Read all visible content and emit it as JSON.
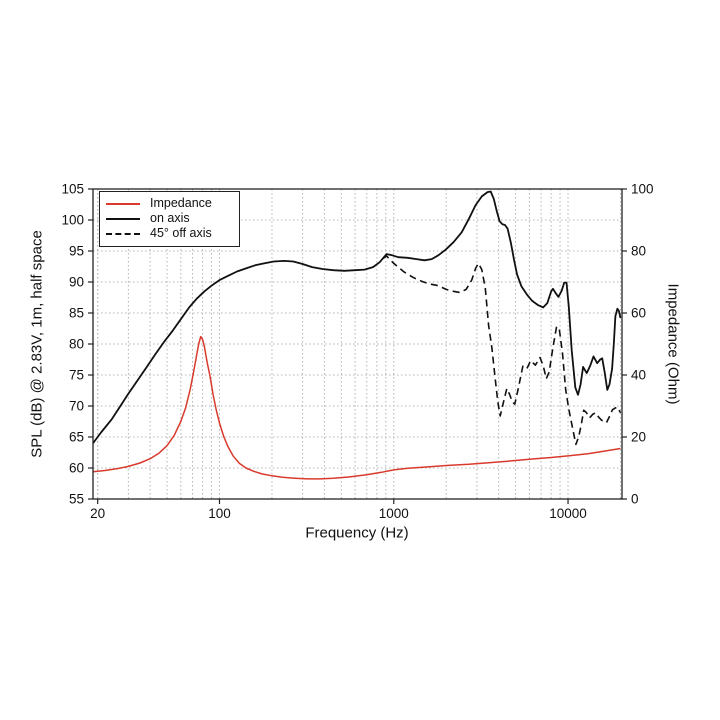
{
  "page": {
    "background": "#ffffff"
  },
  "labels": {
    "xlabel": "Frequency (Hz)",
    "ylabel_left": "SPL (dB) @ 2.83V, 1m, half space",
    "ylabel_right": "Impedance (Ohm)"
  },
  "legend": {
    "items": [
      {
        "label": "Impedance",
        "style": "solid",
        "color": "#d93a2c"
      },
      {
        "label": "on axis",
        "style": "solid",
        "color": "#111111"
      },
      {
        "label": "45° off axis",
        "style": "dashed",
        "color": "#111111"
      }
    ]
  },
  "colors": {
    "impedance_line": "#d93a2c",
    "spl_line": "#111111",
    "grid": "#b3b3b3",
    "frame": "#222222"
  },
  "chart_data": {
    "type": "line",
    "title": "",
    "xlabel": "Frequency (Hz)",
    "ylabel_left": "SPL (dB) @ 2.83V, 1m, half space",
    "ylabel_right": "Impedance (Ohm)",
    "x_scale": "log",
    "x_range": [
      18.8,
      20400
    ],
    "y_left_range": [
      55,
      105
    ],
    "y_right_range": [
      0,
      100
    ],
    "grid": "dotted",
    "legend_position": "upper-left",
    "x_ticks": [
      {
        "value": 20,
        "label": "20"
      },
      {
        "value": 100,
        "label": "100"
      },
      {
        "value": 1000,
        "label": "1000"
      },
      {
        "value": 10000,
        "label": "10000"
      }
    ],
    "x_gridlines": [
      20,
      30,
      40,
      50,
      60,
      70,
      80,
      90,
      100,
      200,
      300,
      400,
      500,
      600,
      700,
      800,
      900,
      1000,
      2000,
      3000,
      4000,
      5000,
      6000,
      7000,
      8000,
      9000,
      10000,
      20000
    ],
    "y_left_ticks": [
      {
        "value": 55,
        "label": "55"
      },
      {
        "value": 60,
        "label": "60"
      },
      {
        "value": 65,
        "label": "65"
      },
      {
        "value": 70,
        "label": "70"
      },
      {
        "value": 75,
        "label": "75"
      },
      {
        "value": 80,
        "label": "80"
      },
      {
        "value": 85,
        "label": "85"
      },
      {
        "value": 90,
        "label": "90"
      },
      {
        "value": 95,
        "label": "95"
      },
      {
        "value": 100,
        "label": "100"
      },
      {
        "value": 105,
        "label": "105"
      }
    ],
    "y_right_ticks": [
      {
        "value": 0,
        "label": "0"
      },
      {
        "value": 20,
        "label": "20"
      },
      {
        "value": 40,
        "label": "40"
      },
      {
        "value": 60,
        "label": "60"
      },
      {
        "value": 80,
        "label": "80"
      },
      {
        "value": 100,
        "label": "100"
      }
    ],
    "y_gridlines_left_scale": [
      60,
      65,
      70,
      75,
      80,
      85,
      90,
      95,
      100
    ],
    "series": [
      {
        "name": "Impedance",
        "axis": "right",
        "unit": "Ohm",
        "color": "#d93a2c",
        "style": "solid",
        "width": 1.5,
        "points": [
          [
            18.8,
            8.8
          ],
          [
            22,
            9.2
          ],
          [
            26,
            9.8
          ],
          [
            30,
            10.5
          ],
          [
            35,
            11.6
          ],
          [
            40,
            13.0
          ],
          [
            45,
            14.8
          ],
          [
            50,
            17.2
          ],
          [
            55,
            20.5
          ],
          [
            60,
            25.0
          ],
          [
            64,
            29.5
          ],
          [
            68,
            35.5
          ],
          [
            71,
            41.0
          ],
          [
            74,
            46.5
          ],
          [
            76,
            50.0
          ],
          [
            78,
            52.4
          ],
          [
            80,
            51.5
          ],
          [
            82,
            49.0
          ],
          [
            85,
            44.0
          ],
          [
            88,
            40.0
          ],
          [
            92,
            33.5
          ],
          [
            96,
            28.5
          ],
          [
            100,
            24.5
          ],
          [
            106,
            20.0
          ],
          [
            112,
            16.8
          ],
          [
            120,
            13.8
          ],
          [
            130,
            11.5
          ],
          [
            142,
            10.0
          ],
          [
            156,
            9.0
          ],
          [
            175,
            8.1
          ],
          [
            200,
            7.5
          ],
          [
            230,
            7.0
          ],
          [
            270,
            6.7
          ],
          [
            320,
            6.5
          ],
          [
            380,
            6.5
          ],
          [
            450,
            6.7
          ],
          [
            550,
            7.1
          ],
          [
            700,
            7.8
          ],
          [
            850,
            8.6
          ],
          [
            1000,
            9.4
          ],
          [
            1200,
            9.9
          ],
          [
            1500,
            10.3
          ],
          [
            2000,
            10.8
          ],
          [
            2700,
            11.2
          ],
          [
            3500,
            11.7
          ],
          [
            4500,
            12.2
          ],
          [
            6000,
            12.8
          ],
          [
            8000,
            13.4
          ],
          [
            10000,
            13.9
          ],
          [
            13000,
            14.6
          ],
          [
            16000,
            15.4
          ],
          [
            20000,
            16.3
          ]
        ]
      },
      {
        "name": "on axis",
        "axis": "left",
        "unit": "dB",
        "color": "#111111",
        "style": "solid",
        "width": 1.8,
        "points": [
          [
            18.8,
            64.0
          ],
          [
            21,
            65.8
          ],
          [
            24,
            67.8
          ],
          [
            27,
            70.0
          ],
          [
            30,
            72.0
          ],
          [
            34,
            74.2
          ],
          [
            38,
            76.2
          ],
          [
            43,
            78.4
          ],
          [
            48,
            80.3
          ],
          [
            54,
            82.2
          ],
          [
            60,
            84.0
          ],
          [
            67,
            85.9
          ],
          [
            74,
            87.3
          ],
          [
            82,
            88.5
          ],
          [
            90,
            89.4
          ],
          [
            100,
            90.3
          ],
          [
            112,
            91.0
          ],
          [
            126,
            91.7
          ],
          [
            142,
            92.2
          ],
          [
            160,
            92.7
          ],
          [
            180,
            93.0
          ],
          [
            205,
            93.3
          ],
          [
            235,
            93.4
          ],
          [
            265,
            93.3
          ],
          [
            300,
            92.9
          ],
          [
            340,
            92.4
          ],
          [
            390,
            92.1
          ],
          [
            450,
            91.9
          ],
          [
            520,
            91.8
          ],
          [
            600,
            91.9
          ],
          [
            680,
            92.0
          ],
          [
            760,
            92.4
          ],
          [
            830,
            93.2
          ],
          [
            910,
            94.5
          ],
          [
            980,
            94.3
          ],
          [
            1060,
            94.0
          ],
          [
            1200,
            93.9
          ],
          [
            1350,
            93.7
          ],
          [
            1500,
            93.5
          ],
          [
            1650,
            93.7
          ],
          [
            1800,
            94.3
          ],
          [
            1980,
            95.2
          ],
          [
            2200,
            96.4
          ],
          [
            2450,
            98.0
          ],
          [
            2700,
            100.2
          ],
          [
            2950,
            102.4
          ],
          [
            3200,
            103.8
          ],
          [
            3450,
            104.5
          ],
          [
            3600,
            104.6
          ],
          [
            3750,
            103.4
          ],
          [
            3900,
            101.4
          ],
          [
            4050,
            99.8
          ],
          [
            4200,
            99.3
          ],
          [
            4350,
            99.2
          ],
          [
            4500,
            98.6
          ],
          [
            4700,
            96.3
          ],
          [
            4900,
            93.6
          ],
          [
            5100,
            91.2
          ],
          [
            5400,
            89.3
          ],
          [
            5800,
            88.0
          ],
          [
            6200,
            87.0
          ],
          [
            6700,
            86.3
          ],
          [
            7200,
            85.9
          ],
          [
            7600,
            86.6
          ],
          [
            8000,
            88.5
          ],
          [
            8200,
            88.9
          ],
          [
            8500,
            88.2
          ],
          [
            8800,
            87.6
          ],
          [
            9200,
            88.6
          ],
          [
            9500,
            89.9
          ],
          [
            9800,
            89.9
          ],
          [
            10100,
            86.0
          ],
          [
            10500,
            79.0
          ],
          [
            11000,
            73.0
          ],
          [
            11400,
            71.8
          ],
          [
            11800,
            73.5
          ],
          [
            12200,
            76.3
          ],
          [
            12800,
            75.3
          ],
          [
            13400,
            76.5
          ],
          [
            14000,
            78.0
          ],
          [
            14700,
            76.9
          ],
          [
            15300,
            77.5
          ],
          [
            15700,
            77.7
          ],
          [
            16200,
            75.5
          ],
          [
            16800,
            72.6
          ],
          [
            17300,
            73.5
          ],
          [
            17900,
            76.0
          ],
          [
            18300,
            80.0
          ],
          [
            18700,
            84.5
          ],
          [
            19200,
            85.7
          ],
          [
            19600,
            85.3
          ],
          [
            20000,
            84.2
          ]
        ]
      },
      {
        "name": "45° off axis",
        "axis": "left",
        "unit": "dB",
        "color": "#111111",
        "style": "dashed",
        "width": 1.6,
        "points": [
          [
            870,
            93.8
          ],
          [
            910,
            94.2
          ],
          [
            1000,
            93.0
          ],
          [
            1150,
            91.6
          ],
          [
            1300,
            90.7
          ],
          [
            1450,
            90.1
          ],
          [
            1600,
            89.7
          ],
          [
            1800,
            89.4
          ],
          [
            2000,
            88.8
          ],
          [
            2200,
            88.5
          ],
          [
            2400,
            88.3
          ],
          [
            2600,
            88.8
          ],
          [
            2800,
            90.3
          ],
          [
            2950,
            92.2
          ],
          [
            3060,
            93.0
          ],
          [
            3200,
            92.0
          ],
          [
            3350,
            89.0
          ],
          [
            3500,
            83.0
          ],
          [
            3650,
            79.5
          ],
          [
            3800,
            75.0
          ],
          [
            3950,
            70.8
          ],
          [
            4080,
            68.4
          ],
          [
            4250,
            70.5
          ],
          [
            4450,
            72.8
          ],
          [
            4600,
            72.0
          ],
          [
            4800,
            70.6
          ],
          [
            4950,
            70.3
          ],
          [
            5200,
            73.0
          ],
          [
            5500,
            76.4
          ],
          [
            5800,
            76.0
          ],
          [
            6100,
            77.3
          ],
          [
            6500,
            76.6
          ],
          [
            6900,
            77.8
          ],
          [
            7200,
            76.5
          ],
          [
            7500,
            74.4
          ],
          [
            7800,
            75.5
          ],
          [
            8200,
            79.5
          ],
          [
            8600,
            82.8
          ],
          [
            8900,
            82.5
          ],
          [
            9300,
            78.5
          ],
          [
            9700,
            72.6
          ],
          [
            10100,
            69.5
          ],
          [
            10600,
            66.5
          ],
          [
            11100,
            63.8
          ],
          [
            11500,
            65.0
          ],
          [
            11900,
            66.9
          ],
          [
            12300,
            69.3
          ],
          [
            12700,
            69.0
          ],
          [
            13300,
            68.1
          ],
          [
            13900,
            68.7
          ],
          [
            14400,
            68.9
          ],
          [
            15000,
            68.2
          ],
          [
            15600,
            67.7
          ],
          [
            16100,
            67.5
          ],
          [
            16600,
            67.3
          ],
          [
            17300,
            68.3
          ],
          [
            18000,
            69.4
          ],
          [
            18700,
            69.7
          ],
          [
            19200,
            69.8
          ],
          [
            20000,
            68.9
          ]
        ]
      }
    ]
  }
}
